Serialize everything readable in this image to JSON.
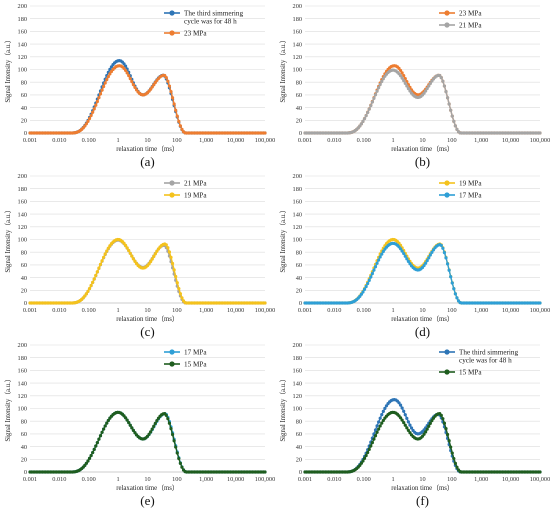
{
  "chart_data": [
    {
      "panel_label": "(a)",
      "type": "line",
      "xscale": "log",
      "xlim": [
        0.001,
        100000
      ],
      "ylim": [
        0,
        200
      ],
      "yticks": [
        0,
        20,
        40,
        60,
        80,
        100,
        120,
        140,
        160,
        180,
        200
      ],
      "xtick_labels": [
        "0.001",
        "0.010",
        "0.100",
        "1",
        "10",
        "100",
        "1,000",
        "10,000",
        "100,000"
      ],
      "xlabel": "relaxation time（ms）",
      "ylabel": "Signal Intensity（a.u.）",
      "grid": "horizontal",
      "legend_position": "top-right",
      "series": [
        {
          "name": "The third simmering cycle was for 48 h",
          "color": "#2e75b6",
          "peaks": [
            {
              "x": 1.1,
              "y": 114
            },
            {
              "x": 35,
              "y": 91
            }
          ],
          "min": {
            "x": 7,
            "y": 60
          },
          "onset": 0.025,
          "end": 200
        },
        {
          "name": "23 MPa",
          "color": "#ed7d31",
          "peaks": [
            {
              "x": 1.1,
              "y": 106
            },
            {
              "x": 37,
              "y": 91
            }
          ],
          "min": {
            "x": 7,
            "y": 60
          },
          "onset": 0.025,
          "end": 200
        }
      ]
    },
    {
      "panel_label": "(b)",
      "type": "line",
      "xscale": "log",
      "xlim": [
        0.001,
        100000
      ],
      "ylim": [
        0,
        200
      ],
      "yticks": [
        0,
        20,
        40,
        60,
        80,
        100,
        120,
        140,
        160,
        180,
        200
      ],
      "xtick_labels": [
        "0.001",
        "0.010",
        "0.100",
        "1",
        "10",
        "100",
        "1,000",
        "10,000",
        "100,000"
      ],
      "xlabel": "relaxation time（ms）",
      "ylabel": "Signal Intensity（a.u.）",
      "grid": "horizontal",
      "legend_position": "top-right",
      "series": [
        {
          "name": "23 MPa",
          "color": "#ed7d31",
          "peaks": [
            {
              "x": 1.1,
              "y": 106
            },
            {
              "x": 37,
              "y": 91
            }
          ],
          "min": {
            "x": 7,
            "y": 60
          },
          "onset": 0.025,
          "end": 200
        },
        {
          "name": "21 MPa",
          "color": "#a5a5a5",
          "peaks": [
            {
              "x": 1.0,
              "y": 99
            },
            {
              "x": 37,
              "y": 91
            }
          ],
          "min": {
            "x": 7,
            "y": 56
          },
          "onset": 0.025,
          "end": 200
        }
      ]
    },
    {
      "panel_label": "(c)",
      "type": "line",
      "xscale": "log",
      "xlim": [
        0.001,
        100000
      ],
      "ylim": [
        0,
        200
      ],
      "yticks": [
        0,
        20,
        40,
        60,
        80,
        100,
        120,
        140,
        160,
        180,
        200
      ],
      "xtick_labels": [
        "0.001",
        "0.010",
        "0.100",
        "1",
        "10",
        "100",
        "1,000",
        "10,000",
        "100,000"
      ],
      "xlabel": "relaxation time（ms）",
      "ylabel": "Signal Intensity（a.u.）",
      "grid": "horizontal",
      "legend_position": "top-right",
      "series": [
        {
          "name": "21 MPa",
          "color": "#a5a5a5",
          "peaks": [
            {
              "x": 1.0,
              "y": 99
            },
            {
              "x": 37,
              "y": 91
            }
          ],
          "min": {
            "x": 7,
            "y": 56
          },
          "onset": 0.025,
          "end": 200
        },
        {
          "name": "19 MPa",
          "color": "#f4c21d",
          "peaks": [
            {
              "x": 1.0,
              "y": 100
            },
            {
              "x": 40,
              "y": 93
            }
          ],
          "min": {
            "x": 7,
            "y": 55
          },
          "onset": 0.025,
          "end": 210
        }
      ]
    },
    {
      "panel_label": "(d)",
      "type": "line",
      "xscale": "log",
      "xlim": [
        0.001,
        100000
      ],
      "ylim": [
        0,
        200
      ],
      "yticks": [
        0,
        20,
        40,
        60,
        80,
        100,
        120,
        140,
        160,
        180,
        200
      ],
      "xtick_labels": [
        "0.001",
        "0.010",
        "0.100",
        "1",
        "10",
        "100",
        "1,000",
        "10,000",
        "100,000"
      ],
      "xlabel": "relaxation time（ms）",
      "ylabel": "Signal Intensity（a.u.）",
      "grid": "horizontal",
      "legend_position": "top-right",
      "series": [
        {
          "name": "19 MPa",
          "color": "#f4c21d",
          "peaks": [
            {
              "x": 1.0,
              "y": 100
            },
            {
              "x": 40,
              "y": 93
            }
          ],
          "min": {
            "x": 7,
            "y": 55
          },
          "onset": 0.025,
          "end": 210
        },
        {
          "name": "17 MPa",
          "color": "#2e9fd6",
          "peaks": [
            {
              "x": 1.0,
              "y": 94
            },
            {
              "x": 40,
              "y": 92
            }
          ],
          "min": {
            "x": 7,
            "y": 52
          },
          "onset": 0.025,
          "end": 210
        }
      ]
    },
    {
      "panel_label": "(e)",
      "type": "line",
      "xscale": "log",
      "xlim": [
        0.001,
        100000
      ],
      "ylim": [
        0,
        200
      ],
      "yticks": [
        0,
        20,
        40,
        60,
        80,
        100,
        120,
        140,
        160,
        180,
        200
      ],
      "xtick_labels": [
        "0.001",
        "0.010",
        "0.100",
        "1",
        "10",
        "100",
        "1,000",
        "10,000",
        "100,000"
      ],
      "xlabel": "relaxation time（ms）",
      "ylabel": "Signal Intensity（a.u.）",
      "grid": "horizontal",
      "legend_position": "top-right",
      "series": [
        {
          "name": "17 MPa",
          "color": "#2e9fd6",
          "peaks": [
            {
              "x": 1.0,
              "y": 94
            },
            {
              "x": 40,
              "y": 92
            }
          ],
          "min": {
            "x": 7,
            "y": 52
          },
          "onset": 0.025,
          "end": 210
        },
        {
          "name": "15 MPa",
          "color": "#1f5d1f",
          "peaks": [
            {
              "x": 1.0,
              "y": 94
            },
            {
              "x": 38,
              "y": 92
            }
          ],
          "min": {
            "x": 7,
            "y": 52
          },
          "onset": 0.025,
          "end": 210
        }
      ]
    },
    {
      "panel_label": "(f)",
      "type": "line",
      "xscale": "log",
      "xlim": [
        0.001,
        100000
      ],
      "ylim": [
        0,
        200
      ],
      "yticks": [
        0,
        20,
        40,
        60,
        80,
        100,
        120,
        140,
        160,
        180,
        200
      ],
      "xtick_labels": [
        "0.001",
        "0.010",
        "0.100",
        "1",
        "10",
        "100",
        "1,000",
        "10,000",
        "100,000"
      ],
      "xlabel": "relaxation time（ms）",
      "ylabel": "Signal Intensity（a.u.）",
      "grid": "horizontal",
      "legend_position": "top-right",
      "series": [
        {
          "name": "The third simmering cycle was for 48 h",
          "color": "#2e75b6",
          "peaks": [
            {
              "x": 1.1,
              "y": 114
            },
            {
              "x": 35,
              "y": 91
            }
          ],
          "min": {
            "x": 7,
            "y": 60
          },
          "onset": 0.025,
          "end": 200
        },
        {
          "name": "15 MPa",
          "color": "#1f5d1f",
          "peaks": [
            {
              "x": 1.0,
              "y": 94
            },
            {
              "x": 38,
              "y": 92
            }
          ],
          "min": {
            "x": 7,
            "y": 52
          },
          "onset": 0.025,
          "end": 210
        }
      ]
    }
  ]
}
